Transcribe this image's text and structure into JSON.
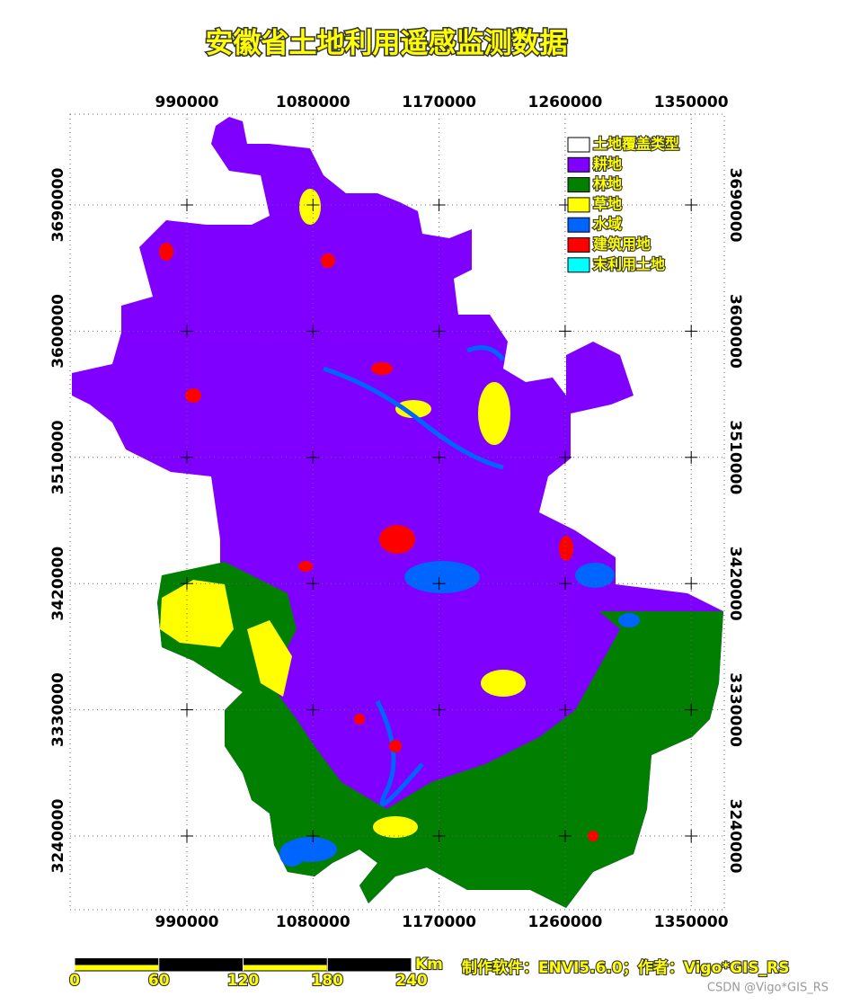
{
  "title": "安徽省土地利用遥感监测数据",
  "x_ticks": [
    "990000",
    "1080000",
    "1170000",
    "1260000",
    "1350000"
  ],
  "y_ticks": [
    "3690000",
    "3600000",
    "3510000",
    "3420000",
    "3330000",
    "3240000"
  ],
  "legend": {
    "title": "土地覆盖类型",
    "title_color": "#ffffff",
    "items": [
      {
        "label": "耕地",
        "color": "#7f00ff"
      },
      {
        "label": "林地",
        "color": "#007f00"
      },
      {
        "label": "草地",
        "color": "#ffff00"
      },
      {
        "label": "水域",
        "color": "#0064ff"
      },
      {
        "label": "建筑用地",
        "color": "#ff0000"
      },
      {
        "label": "末利用土地",
        "color": "#00ffff"
      }
    ]
  },
  "scale_bar": {
    "unit": "Km",
    "labels": [
      "0",
      "60",
      "120",
      "180",
      "240"
    ]
  },
  "credits": "制作软件：ENVI5.6.0；作者：Vigo*GIS_RS",
  "watermark": "CSDN @Vigo*GIS_RS"
}
